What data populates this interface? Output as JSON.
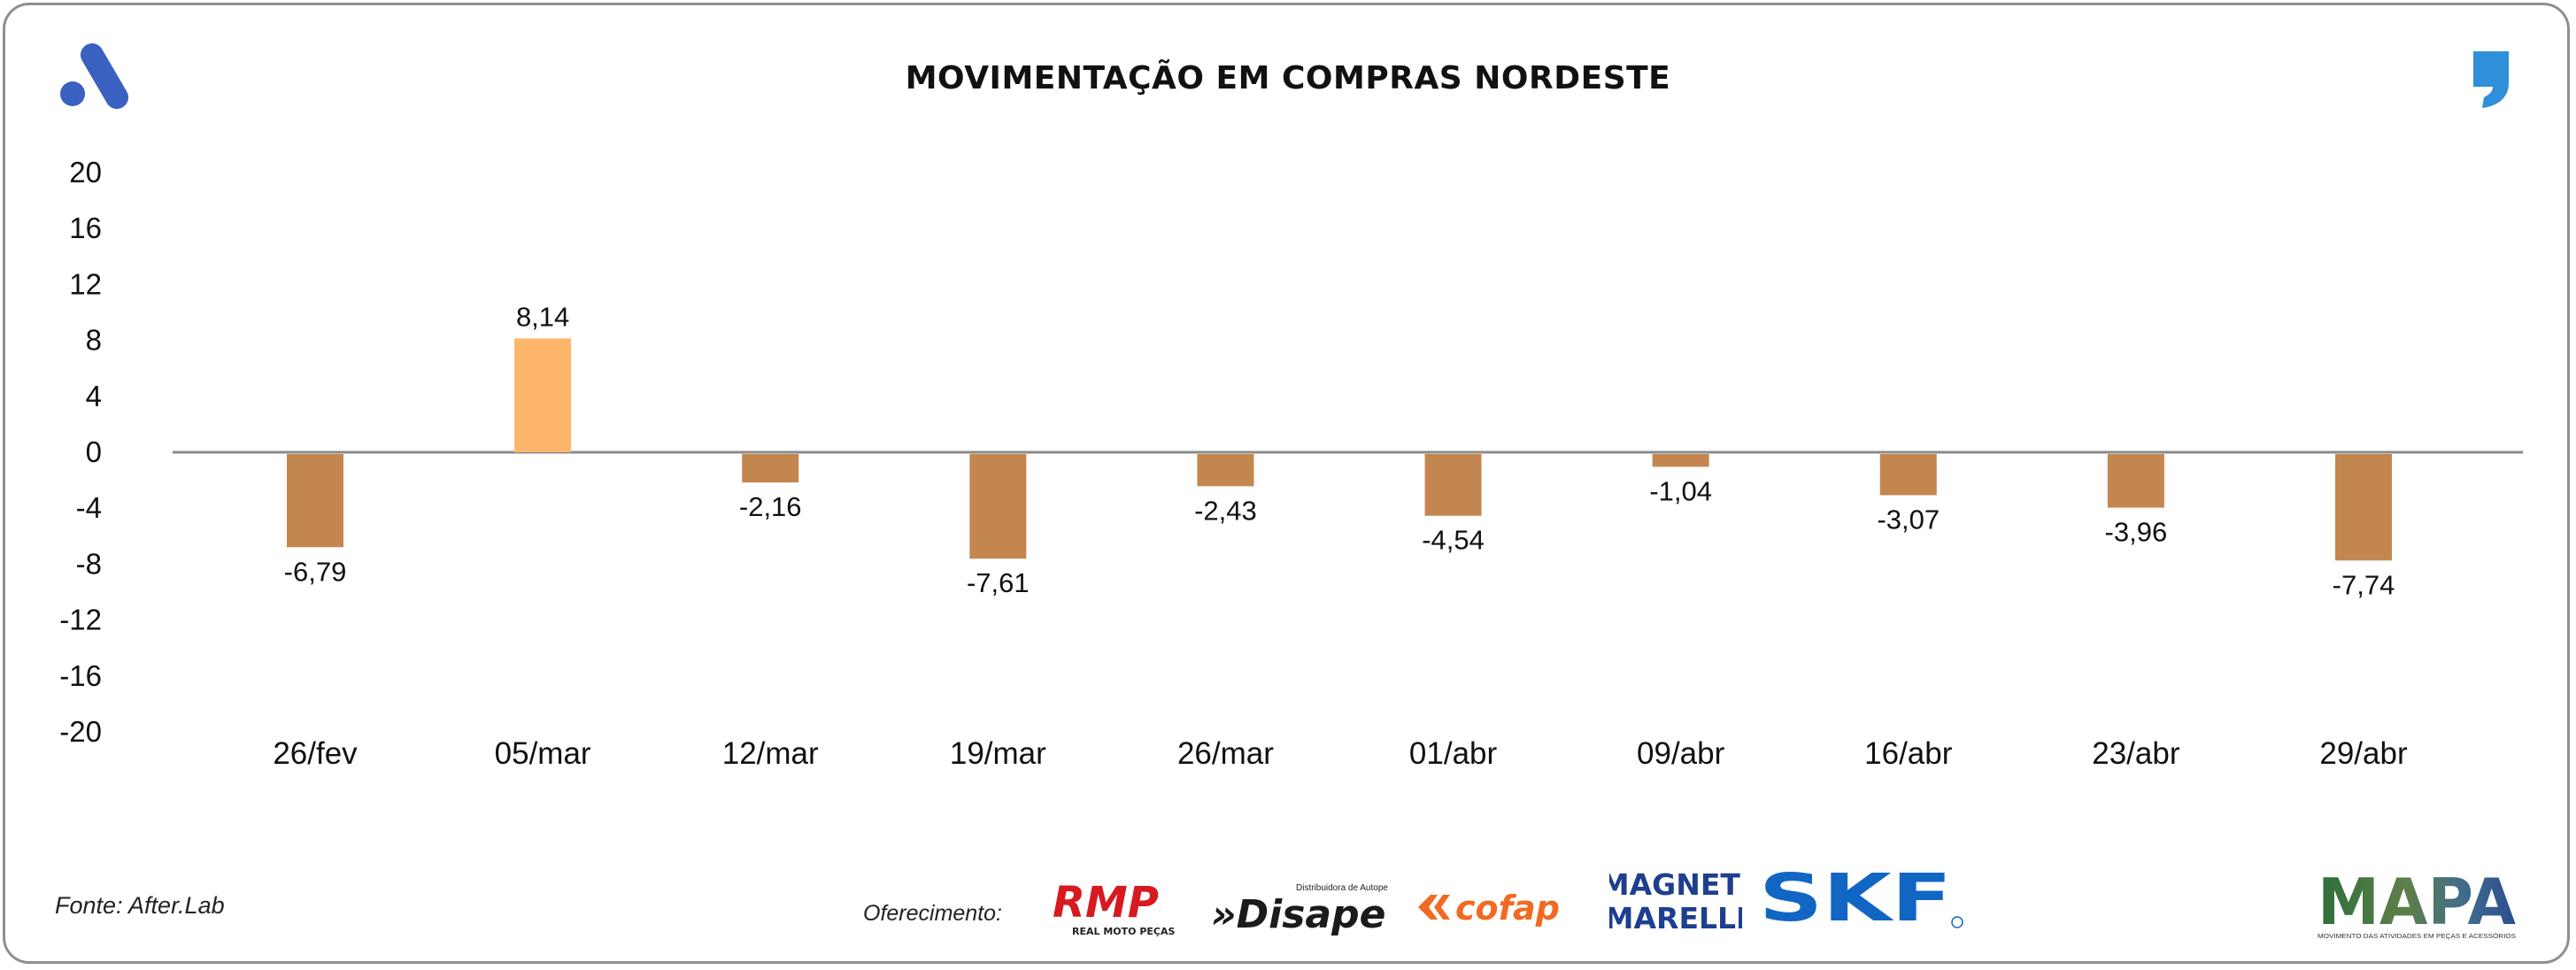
{
  "title": "MOVIMENTAÇÃO EM COMPRAS NORDESTE",
  "source": "Fonte: After.Lab",
  "sponsor_label": "Oferecimento:",
  "sponsors": {
    "rmp": {
      "name": "RMP",
      "tagline": "REAL MOTO PEÇAS"
    },
    "disape": {
      "name": "»Disape",
      "tagline": "Distribuidora de Autopeças"
    },
    "cofap": {
      "name": "cofap"
    },
    "magneti": {
      "line1": "MAGNETI",
      "line2": "MARELLI"
    },
    "skf": {
      "name": "SKF"
    }
  },
  "mapa": {
    "name": "MAPA",
    "tagline": "MOVIMENTO DAS ATIVIDADES EM PEÇAS E ACESSÓRIOS"
  },
  "colors": {
    "negative_bar": "#C4864F",
    "positive_bar": "#FDB56C",
    "brand_blue": "#3A60C0",
    "zero_line": "#8a8a8a"
  },
  "icons": [
    "brand-a-logo-icon",
    "comma-logo-icon"
  ],
  "chart_data": {
    "type": "bar",
    "title": "MOVIMENTAÇÃO EM COMPRAS NORDESTE",
    "categories": [
      "26/fev",
      "05/mar",
      "12/mar",
      "19/mar",
      "26/mar",
      "01/abr",
      "09/abr",
      "16/abr",
      "23/abr",
      "29/abr"
    ],
    "values": [
      -6.79,
      8.14,
      -2.16,
      -7.61,
      -2.43,
      -4.54,
      -1.04,
      -3.07,
      -3.96,
      -7.74
    ],
    "labels": [
      "-6,79",
      "8,14",
      "-2,16",
      "-7,61",
      "-2,43",
      "-4,54",
      "-1,04",
      "-3,07",
      "-3,96",
      "-7,74"
    ],
    "yticks": [
      20,
      16,
      12,
      8,
      4,
      0,
      -4,
      -8,
      -12,
      -16,
      -20
    ],
    "ylim": [
      -20,
      20
    ],
    "xlabel": "",
    "ylabel": "",
    "grid": false,
    "legend": "none"
  }
}
